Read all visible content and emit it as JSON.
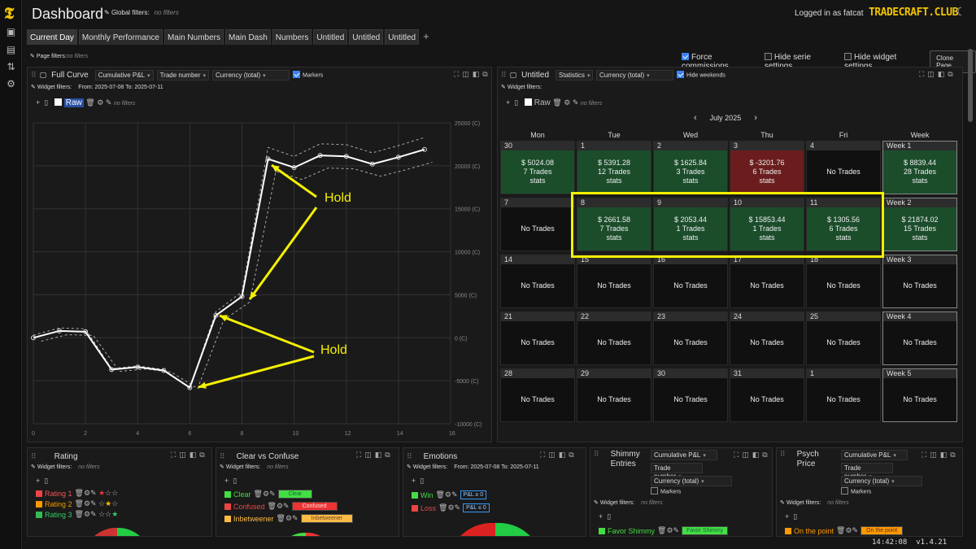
{
  "header": {
    "title": "Dashboard",
    "global_filters_label": "Global filters:",
    "global_filters_value": "no filters",
    "login_text": "Logged in as fatcat",
    "brand": "TRADECRAFT.CLUB"
  },
  "tabs": [
    "Current Day",
    "Monthly Performance",
    "Main Numbers",
    "Main Dash",
    "Numbers",
    "Untitled",
    "Untitled",
    "Untitled"
  ],
  "page_filters": {
    "label": "Page filters:",
    "value": "no filters"
  },
  "page_options": {
    "force_commissions": "Force commissions",
    "hide_serie": "Hide serie settings",
    "hide_widget": "Hide widget settings",
    "clone": "Clone Page"
  },
  "curve_panel": {
    "title": "Full Curve",
    "sel1": "Cumulative P&L",
    "sel2": "Trade number",
    "sel3": "Currency (total)",
    "markers": "Markers",
    "wf_label": "Widget filters:",
    "wf_value": "From: 2025-07-08 To: 2025-07-11",
    "raw": "Raw",
    "no_filters": "no filters",
    "annotation1": "Hold",
    "annotation2": "Hold"
  },
  "chart_data": {
    "type": "line",
    "x": [
      0,
      1,
      2,
      3,
      4,
      5,
      6,
      7,
      8,
      9,
      10,
      11,
      12,
      13,
      14,
      15
    ],
    "series": [
      {
        "name": "Raw",
        "values": [
          0,
          800,
          700,
          -3700,
          -3400,
          -3800,
          -5800,
          2600,
          4800,
          20800,
          19800,
          21200,
          21100,
          20200,
          21000,
          21900
        ]
      }
    ],
    "xlim": [
      0,
      16
    ],
    "ylim": [
      -10000,
      25000
    ],
    "xticks": [
      "0",
      "2",
      "4",
      "6",
      "8",
      "10",
      "12",
      "14",
      "16"
    ],
    "yticks": [
      "25000 (C)",
      "20000 (C)",
      "15000 (C)",
      "10000 (C)",
      "5000 (C)",
      "0 (C)",
      "-5000 (C)",
      "-10000 (C)"
    ]
  },
  "cal_panel": {
    "title": "Untitled",
    "sel1": "Statistics",
    "sel2": "Currency (total)",
    "hide_weekends": "Hide weekends",
    "wf_label": "Widget filters:",
    "raw": "Raw",
    "no_filters": "no filters",
    "month": "July 2025",
    "days": [
      "Mon",
      "Tue",
      "Wed",
      "Thu",
      "Fri",
      "Week"
    ]
  },
  "calendar": [
    [
      {
        "n": "30",
        "v": "$ 5024.08",
        "t": "7 Trades",
        "s": "stats",
        "c": "g"
      },
      {
        "n": "1",
        "v": "$ 5391.28",
        "t": "12 Trades",
        "s": "stats",
        "c": "g"
      },
      {
        "n": "2",
        "v": "$ 1625.84",
        "t": "3 Trades",
        "s": "stats",
        "c": "g"
      },
      {
        "n": "3",
        "v": "$ -3201.76",
        "t": "6 Trades",
        "s": "stats",
        "c": "r"
      },
      {
        "n": "4",
        "v": "No Trades",
        "t": "",
        "s": "",
        "c": ""
      },
      {
        "n": "Week 1",
        "v": "$ 8839.44",
        "t": "28 Trades",
        "s": "stats",
        "c": "g"
      }
    ],
    [
      {
        "n": "7",
        "v": "No Trades",
        "t": "",
        "s": "",
        "c": ""
      },
      {
        "n": "8",
        "v": "$ 2661.58",
        "t": "7 Trades",
        "s": "stats",
        "c": "g"
      },
      {
        "n": "9",
        "v": "$ 2053.44",
        "t": "1 Trades",
        "s": "stats",
        "c": "g"
      },
      {
        "n": "10",
        "v": "$ 15853.44",
        "t": "1 Trades",
        "s": "stats",
        "c": "g"
      },
      {
        "n": "11",
        "v": "$ 1305.56",
        "t": "6 Trades",
        "s": "stats",
        "c": "g"
      },
      {
        "n": "Week 2",
        "v": "$ 21874.02",
        "t": "15 Trades",
        "s": "stats",
        "c": "g"
      }
    ],
    [
      {
        "n": "14",
        "v": "No Trades"
      },
      {
        "n": "15",
        "v": "No Trades"
      },
      {
        "n": "16",
        "v": "No Trades"
      },
      {
        "n": "17",
        "v": "No Trades"
      },
      {
        "n": "18",
        "v": "No Trades"
      },
      {
        "n": "Week 3",
        "v": "No Trades"
      }
    ],
    [
      {
        "n": "21",
        "v": "No Trades"
      },
      {
        "n": "22",
        "v": "No Trades"
      },
      {
        "n": "23",
        "v": "No Trades"
      },
      {
        "n": "24",
        "v": "No Trades"
      },
      {
        "n": "25",
        "v": "No Trades"
      },
      {
        "n": "Week 4",
        "v": "No Trades"
      }
    ],
    [
      {
        "n": "28",
        "v": "No Trades"
      },
      {
        "n": "29",
        "v": "No Trades"
      },
      {
        "n": "30",
        "v": "No Trades"
      },
      {
        "n": "31",
        "v": "No Trades"
      },
      {
        "n": "1",
        "v": "No Trades"
      },
      {
        "n": "Week 5",
        "v": "No Trades"
      }
    ]
  ],
  "bottom": {
    "rating": {
      "title": "Rating",
      "wf": "Widget filters:",
      "nf": "no filters",
      "items": [
        "Rating 1",
        "Rating 2",
        "Rating 3"
      ]
    },
    "clear": {
      "title": "Clear vs Confuse",
      "wf": "Widget filters:",
      "nf": "no filters",
      "items": [
        "Clear",
        "Confused",
        "Inbetweener"
      ]
    },
    "emotions": {
      "title": "Emotions",
      "wf": "Widget filters:",
      "dates": "From: 2025-07-08 To: 2025-07-11",
      "items": [
        "Win",
        "Loss"
      ],
      "pills": [
        "P&L ≥ 0",
        "P&L ≤ 0"
      ]
    },
    "shimmy": {
      "title": "Shimmy Entries",
      "sel1": "Cumulative P&L",
      "sel2": "Trade number",
      "sel3": "Currency (total)",
      "markers": "Markers",
      "wf": "Widget filters:",
      "nf": "no filters",
      "item": "Favor Shimmy"
    },
    "psych": {
      "title": "Psych Price",
      "sel1": "Cumulative P&L",
      "sel2": "Trade number",
      "sel3": "Currency (total)",
      "markers": "Markers",
      "wf": "Widget filters:",
      "nf": "no filters",
      "item": "On the point"
    }
  },
  "footer": {
    "time": "14:42:08",
    "version": "v1.4.21"
  }
}
